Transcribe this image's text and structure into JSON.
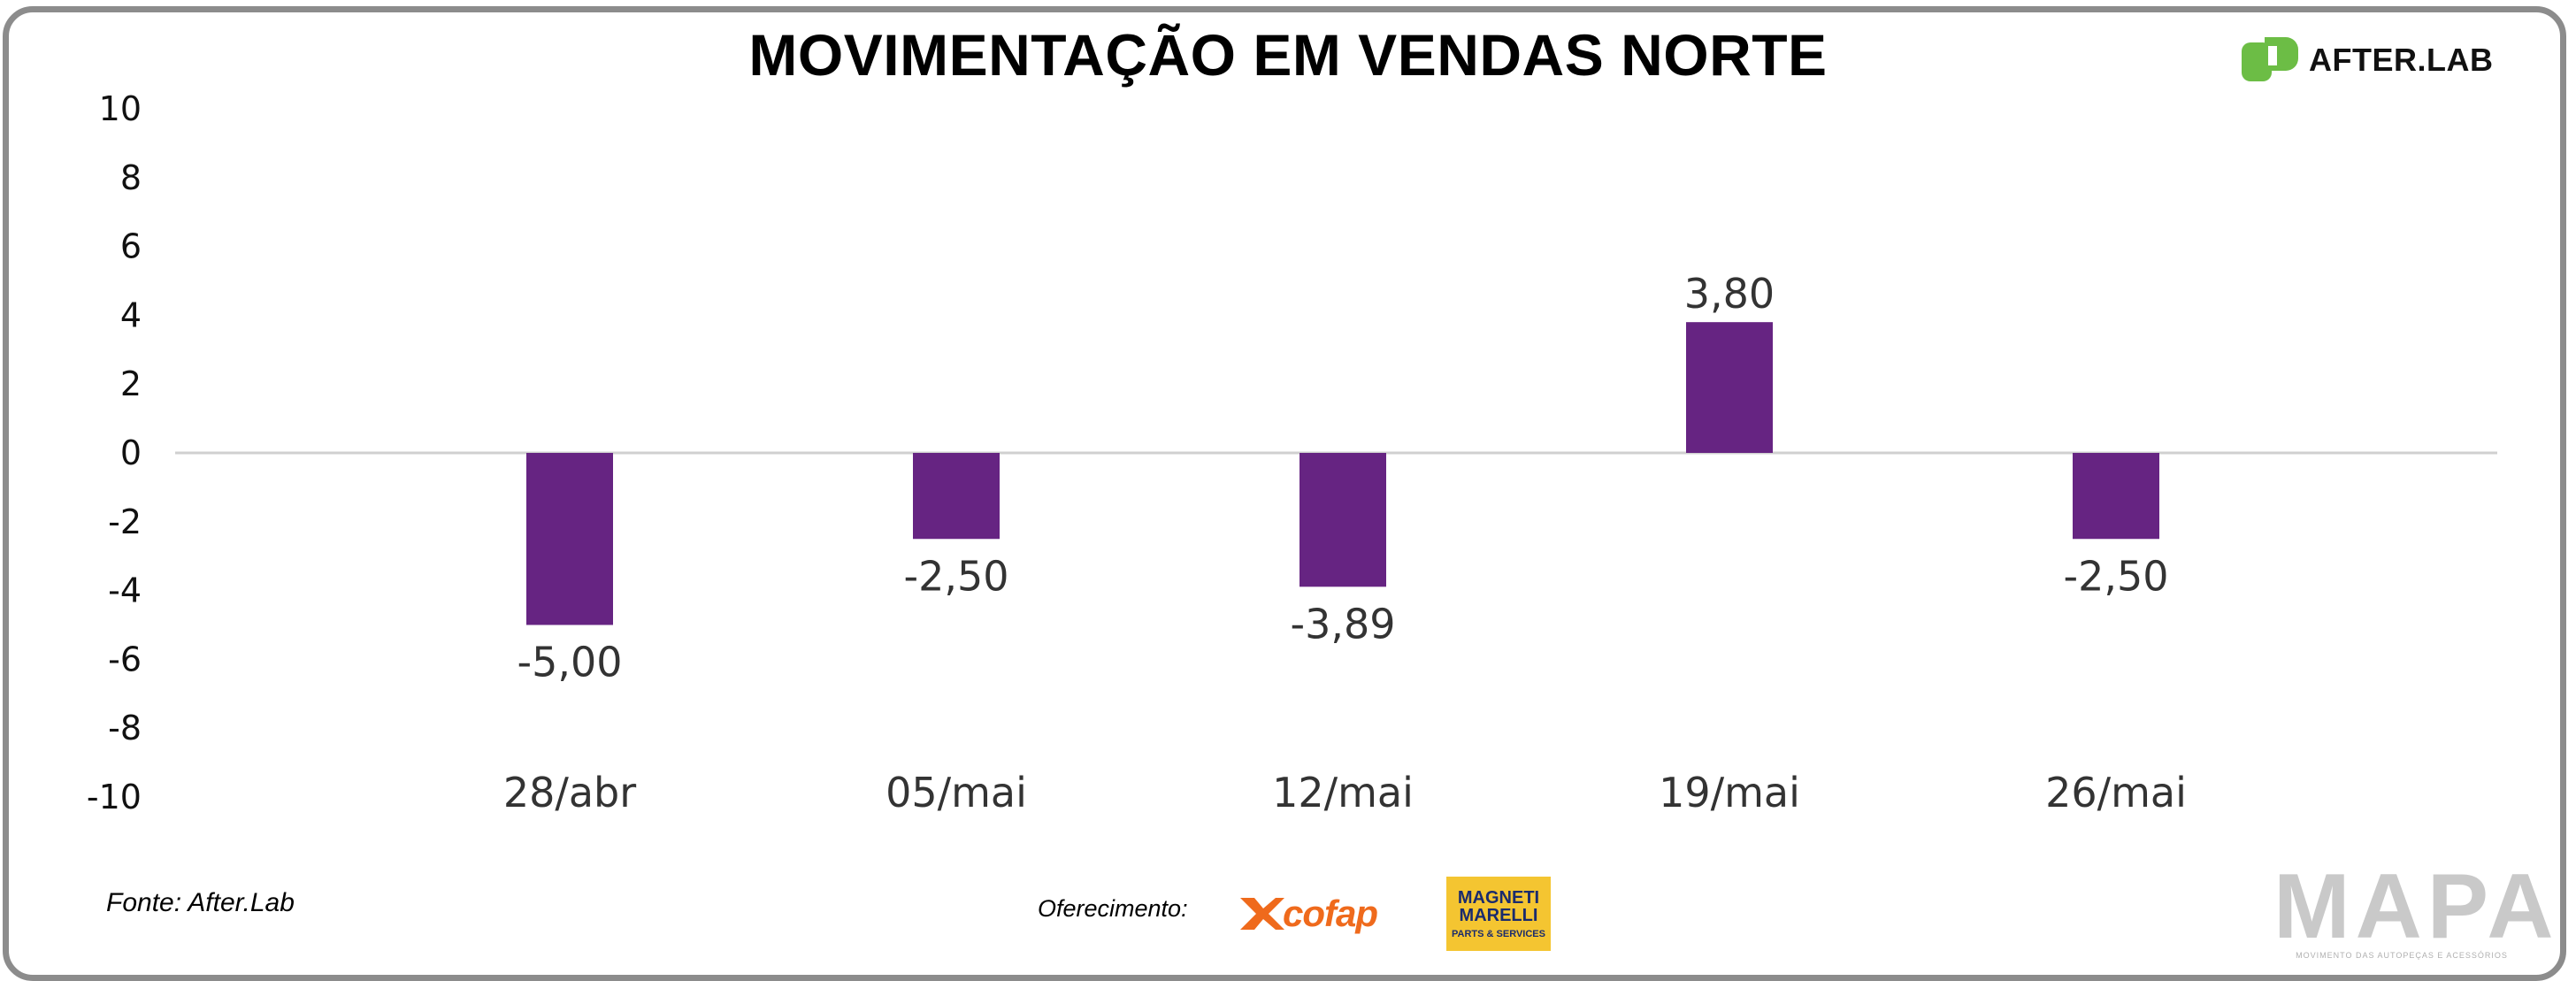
{
  "title": "MOVIMENTAÇÃO EM VENDAS NORTE",
  "brand": {
    "name": "AFTER.LAB",
    "color": "#6cbd45"
  },
  "chart_data": {
    "type": "bar",
    "title": "MOVIMENTAÇÃO EM VENDAS NORTE",
    "categories": [
      "28/abr",
      "05/mai",
      "12/mai",
      "19/mai",
      "26/mai"
    ],
    "values": [
      -5.0,
      -2.5,
      -3.89,
      3.8,
      -2.5
    ],
    "data_labels": [
      "-5,00",
      "-2,50",
      "-3,89",
      "3,80",
      "-2,50"
    ],
    "ylim": [
      -10,
      10
    ],
    "yticks": [
      "10",
      "8",
      "6",
      "4",
      "2",
      "0",
      "-2",
      "-4",
      "-6",
      "-8",
      "-10"
    ],
    "ytick_values": [
      10,
      8,
      6,
      4,
      2,
      0,
      -2,
      -4,
      -6,
      -8,
      -10
    ],
    "xlabel": "",
    "ylabel": "",
    "bar_color": "#662482",
    "grid": false,
    "legend": "none"
  },
  "footer": {
    "source": "Fonte: After.Lab",
    "sponsor_label": "Oferecimento:",
    "sponsors": [
      {
        "name": "cofap",
        "color": "#ef6a1c"
      },
      {
        "name": "MAGNETI MARELLI",
        "line1": "MAGNETI",
        "line2": "MARELLI",
        "line3": "PARTS & SERVICES",
        "color": "#f4c531"
      }
    ],
    "mapa": {
      "title": "MAPA",
      "subtitle": "MOVIMENTO DAS AUTOPEÇAS E ACESSÓRIOS"
    }
  }
}
